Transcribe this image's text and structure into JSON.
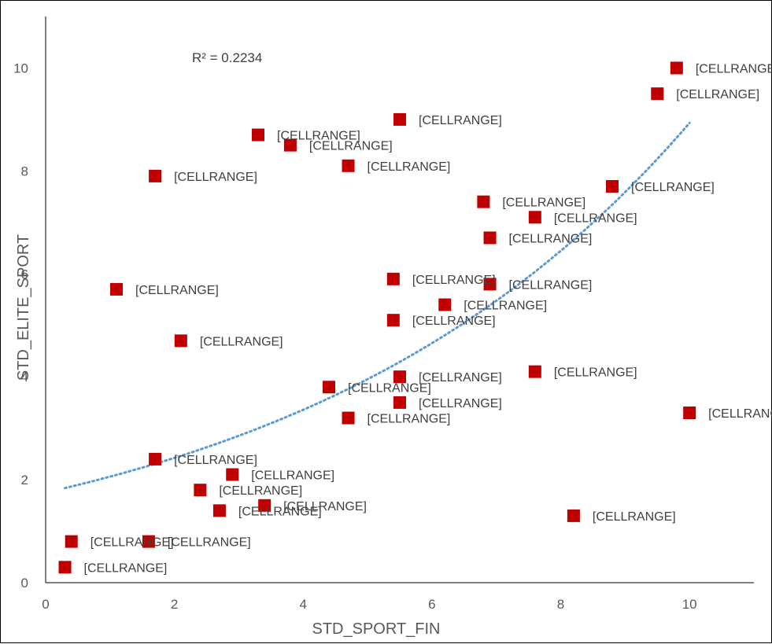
{
  "chart_data": {
    "type": "scatter",
    "title": "",
    "xlabel": "STD_SPORT_FIN",
    "ylabel": "STD_ELITE_SPORT",
    "xlim": [
      0,
      11
    ],
    "ylim": [
      0,
      11
    ],
    "x_ticks": [
      "0",
      "2",
      "4",
      "6",
      "8",
      "10"
    ],
    "y_ticks": [
      "0",
      "2",
      "4",
      "6",
      "8",
      "10"
    ],
    "grid": false,
    "marker_color": "#C00000",
    "trendline": {
      "type": "exponential",
      "color": "#5B9BD5",
      "style": "dotted",
      "r_squared_label": "R² = 0.2234",
      "x_range": [
        0.3,
        10.0
      ],
      "coef_a": 1.75,
      "coef_b": 0.163
    },
    "points": [
      {
        "x": 0.3,
        "y": 0.3,
        "label": "[CELLRANGE]"
      },
      {
        "x": 0.4,
        "y": 0.8,
        "label": "[CELLRANGE]"
      },
      {
        "x": 1.6,
        "y": 0.8,
        "label": "[CELLRANGE]"
      },
      {
        "x": 1.1,
        "y": 5.7,
        "label": "[CELLRANGE]"
      },
      {
        "x": 1.7,
        "y": 7.9,
        "label": "[CELLRANGE]"
      },
      {
        "x": 1.7,
        "y": 2.4,
        "label": "[CELLRANGE]"
      },
      {
        "x": 2.1,
        "y": 4.7,
        "label": "[CELLRANGE]"
      },
      {
        "x": 2.4,
        "y": 1.8,
        "label": "[CELLRANGE]"
      },
      {
        "x": 2.7,
        "y": 1.4,
        "label": "[CELLRANGE]"
      },
      {
        "x": 2.9,
        "y": 2.1,
        "label": "[CELLRANGE]"
      },
      {
        "x": 3.3,
        "y": 8.7,
        "label": "[CELLRANGE]"
      },
      {
        "x": 3.4,
        "y": 1.5,
        "label": "[CELLRANGE]"
      },
      {
        "x": 3.8,
        "y": 8.5,
        "label": "[CELLRANGE]"
      },
      {
        "x": 4.4,
        "y": 3.8,
        "label": "[CELLRANGE]"
      },
      {
        "x": 4.7,
        "y": 8.1,
        "label": "[CELLRANGE]"
      },
      {
        "x": 4.7,
        "y": 3.2,
        "label": "[CELLRANGE]"
      },
      {
        "x": 5.4,
        "y": 5.9,
        "label": "[CELLRANGE]"
      },
      {
        "x": 5.4,
        "y": 5.1,
        "label": "[CELLRANGE]"
      },
      {
        "x": 5.5,
        "y": 9.0,
        "label": "[CELLRANGE]"
      },
      {
        "x": 5.5,
        "y": 4.0,
        "label": "[CELLRANGE]"
      },
      {
        "x": 5.5,
        "y": 3.5,
        "label": "[CELLRANGE]"
      },
      {
        "x": 6.2,
        "y": 5.4,
        "label": "[CELLRANGE]"
      },
      {
        "x": 6.8,
        "y": 7.4,
        "label": "[CELLRANGE]"
      },
      {
        "x": 6.9,
        "y": 6.7,
        "label": "[CELLRANGE]"
      },
      {
        "x": 6.9,
        "y": 5.8,
        "label": "[CELLRANGE]"
      },
      {
        "x": 7.6,
        "y": 7.1,
        "label": "[CELLRANGE]"
      },
      {
        "x": 7.6,
        "y": 4.1,
        "label": "[CELLRANGE]"
      },
      {
        "x": 8.2,
        "y": 1.3,
        "label": "[CELLRANGE]"
      },
      {
        "x": 8.8,
        "y": 7.7,
        "label": "[CELLRANGE]"
      },
      {
        "x": 9.5,
        "y": 9.5,
        "label": "[CELLRANGE]"
      },
      {
        "x": 9.8,
        "y": 10.0,
        "label": "[CELLRANGE]"
      },
      {
        "x": 10.0,
        "y": 3.3,
        "label": "[CELLRANGE]"
      }
    ]
  }
}
